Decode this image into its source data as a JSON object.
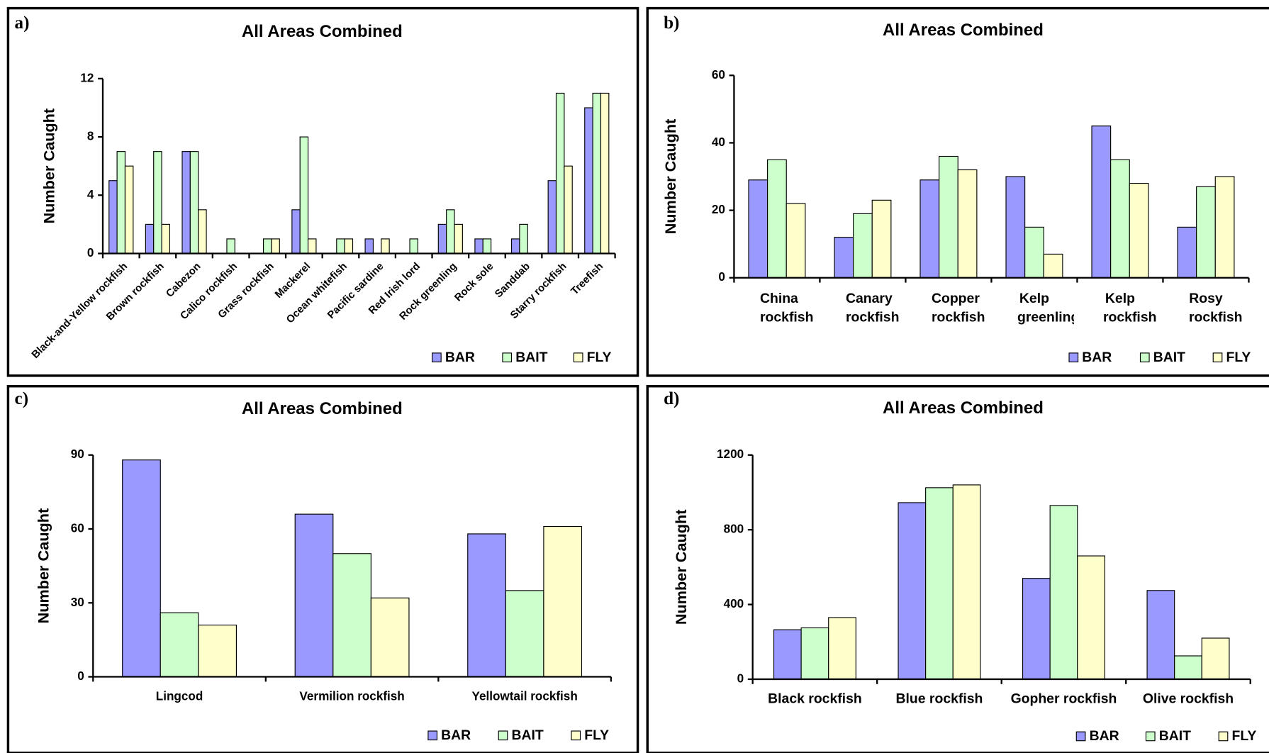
{
  "chart_data": [
    {
      "panel": "a)",
      "type": "bar",
      "title": "All Areas Combined",
      "y_label": "Number Caught",
      "categories": [
        "Black-and-Yellow rockfish",
        "Brown rockfish",
        "Cabezon",
        "Calico rockfish",
        "Grass rockfish",
        "Mackerel",
        "Ocean whitefish",
        "Pacific sardine",
        "Red Irish lord",
        "Rock greenling",
        "Rock sole",
        "Sanddab",
        "Starry rockfish",
        "Treefish"
      ],
      "series": [
        {
          "name": "BAR",
          "color": "#9999ff",
          "values": [
            5,
            2,
            7,
            0,
            0,
            3,
            0,
            1,
            0,
            2,
            1,
            1,
            5,
            10
          ]
        },
        {
          "name": "BAIT",
          "color": "#ccffcc",
          "values": [
            7,
            7,
            7,
            1,
            1,
            8,
            1,
            0,
            1,
            3,
            1,
            2,
            11,
            11
          ]
        },
        {
          "name": "FLY",
          "color": "#ffffcc",
          "values": [
            6,
            2,
            3,
            0,
            1,
            1,
            1,
            1,
            0,
            2,
            0,
            0,
            6,
            11
          ]
        }
      ],
      "ylim": [
        0,
        12
      ],
      "yticks": [
        0,
        4,
        8,
        12
      ]
    },
    {
      "panel": "b)",
      "type": "bar",
      "title": "All Areas Combined",
      "y_label": "Number Caught",
      "categories": [
        "China rockfish",
        "Canary rockfish",
        "Copper rockfish",
        "Kelp greenling",
        "Kelp rockfish",
        "Rosy rockfish"
      ],
      "series": [
        {
          "name": "BAR",
          "color": "#9999ff",
          "values": [
            29,
            12,
            29,
            30,
            45,
            15
          ]
        },
        {
          "name": "BAIT",
          "color": "#ccffcc",
          "values": [
            35,
            19,
            36,
            15,
            35,
            27
          ]
        },
        {
          "name": "FLY",
          "color": "#ffffcc",
          "values": [
            22,
            23,
            32,
            7,
            28,
            30
          ]
        }
      ],
      "ylim": [
        0,
        60
      ],
      "yticks": [
        0,
        20,
        40,
        60
      ]
    },
    {
      "panel": "c)",
      "type": "bar",
      "title": "All Areas Combined",
      "y_label": "Number Caught",
      "categories": [
        "Lingcod",
        "Vermilion rockfish",
        "Yellowtail rockfish"
      ],
      "series": [
        {
          "name": "BAR",
          "color": "#9999ff",
          "values": [
            88,
            66,
            58
          ]
        },
        {
          "name": "BAIT",
          "color": "#ccffcc",
          "values": [
            26,
            50,
            35
          ]
        },
        {
          "name": "FLY",
          "color": "#ffffcc",
          "values": [
            21,
            32,
            61
          ]
        }
      ],
      "ylim": [
        0,
        90
      ],
      "yticks": [
        0,
        30,
        60,
        90
      ]
    },
    {
      "panel": "d)",
      "type": "bar",
      "title": "All Areas Combined",
      "y_label": "Number Caught",
      "categories": [
        "Black rockfish",
        "Blue rockfish",
        "Gopher rockfish",
        "Olive rockfish"
      ],
      "series": [
        {
          "name": "BAR",
          "color": "#9999ff",
          "values": [
            265,
            945,
            540,
            475
          ]
        },
        {
          "name": "BAIT",
          "color": "#ccffcc",
          "values": [
            275,
            1025,
            930,
            125
          ]
        },
        {
          "name": "FLY",
          "color": "#ffffcc",
          "values": [
            330,
            1040,
            660,
            220
          ]
        }
      ],
      "ylim": [
        0,
        1200
      ],
      "yticks": [
        0,
        400,
        800,
        1200
      ]
    }
  ]
}
